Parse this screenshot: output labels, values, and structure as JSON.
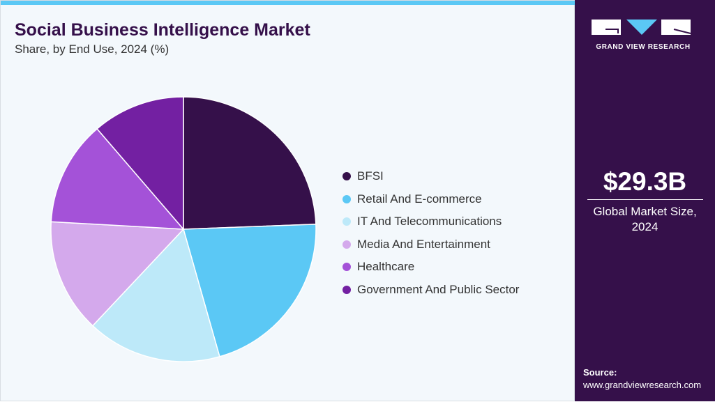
{
  "header": {
    "title": "Social Business Intelligence Market",
    "subtitle": "Share, by End Use, 2024 (%)"
  },
  "chart_data": {
    "type": "pie",
    "title": "Social Business Intelligence Market",
    "subtitle": "Share, by End Use, 2024 (%)",
    "categories": [
      "BFSI",
      "Retail And E-commerce",
      "IT And Telecommunications",
      "Media And Entertainment",
      "Healthcare",
      "Government And Public Sector"
    ],
    "values": [
      24.4,
      21.2,
      16.4,
      13.9,
      12.8,
      11.3
    ],
    "colors": [
      "#35104a",
      "#5bc8f5",
      "#bde9f9",
      "#d4a9ec",
      "#a452d8",
      "#7320a2"
    ],
    "legend_position": "right"
  },
  "sidebar": {
    "logo_text": "GRAND VIEW RESEARCH",
    "market_size": "$29.3B",
    "market_label_line1": "Global Market Size,",
    "market_label_line2": "2024",
    "source_label": "Source:",
    "source_url": "www.grandviewresearch.com"
  }
}
